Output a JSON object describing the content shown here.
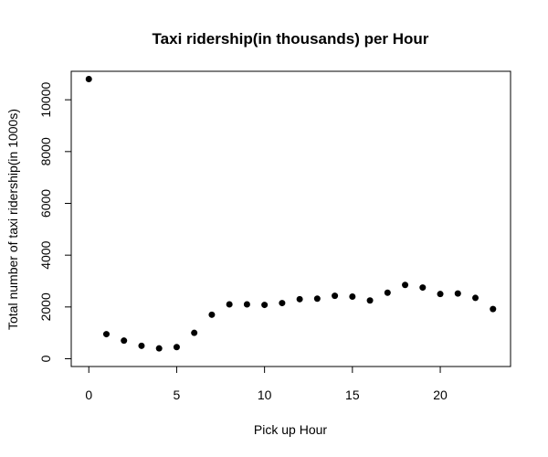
{
  "chart_data": {
    "type": "scatter",
    "title": "Taxi ridership(in thousands) per Hour",
    "xlabel": "Pick up Hour",
    "ylabel": "Total number of taxi ridership(in 1000s)",
    "xlim": [
      -1,
      24
    ],
    "ylim": [
      -300,
      11100
    ],
    "xticks": [
      0,
      5,
      10,
      15,
      20
    ],
    "yticks": [
      0,
      2000,
      4000,
      6000,
      8000,
      10000
    ],
    "grid": false,
    "marker_color": "#000000",
    "x": [
      0,
      1,
      2,
      3,
      4,
      5,
      6,
      7,
      8,
      9,
      10,
      11,
      12,
      13,
      14,
      15,
      16,
      17,
      18,
      19,
      20,
      21,
      22,
      23
    ],
    "y": [
      10800,
      950,
      700,
      500,
      400,
      450,
      1000,
      1700,
      2100,
      2100,
      2080,
      2150,
      2300,
      2320,
      2430,
      2400,
      2250,
      2550,
      2850,
      2750,
      2500,
      2520,
      2350,
      1920
    ]
  }
}
